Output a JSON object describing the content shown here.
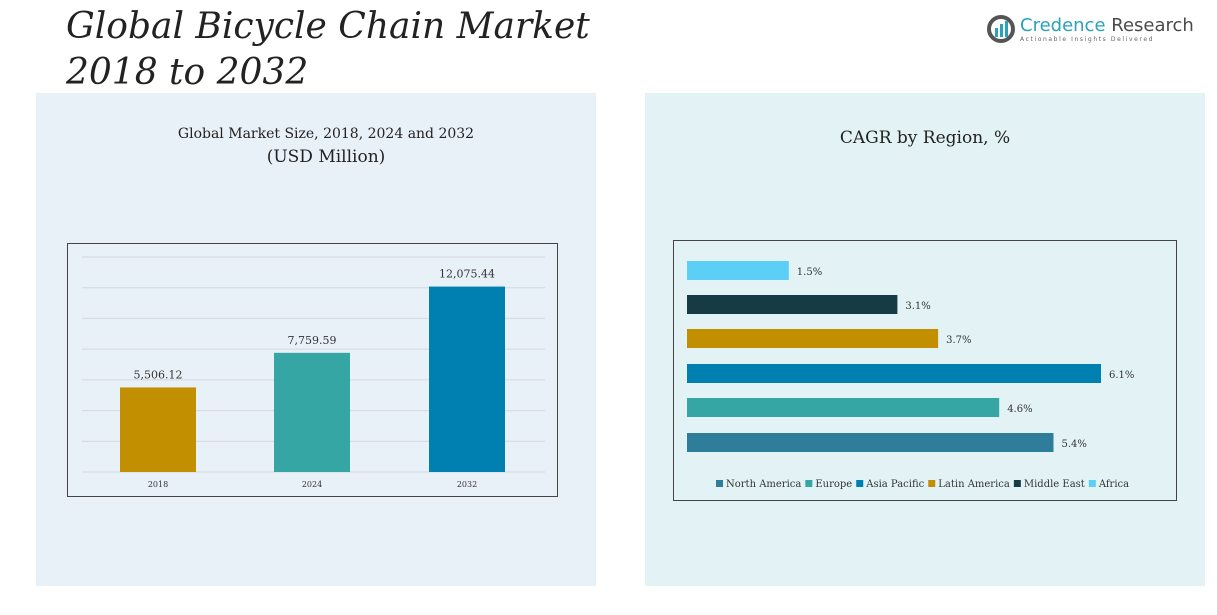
{
  "header": {
    "title_line1": "Global Bicycle Chain Market",
    "title_line2": "2018 to 2032"
  },
  "logo": {
    "name_part1": "Credence",
    "name_part2": " Research",
    "tagline": "Actionable Insights Delivered"
  },
  "chart_data": [
    {
      "type": "bar",
      "title": "Global Market Size, 2018, 2024 and 2032",
      "subtitle": "(USD Million)",
      "categories": [
        "2018",
        "2024",
        "2032"
      ],
      "values": [
        5506.12,
        7759.59,
        12075.44
      ],
      "labels": [
        "5,506.12",
        "7,759.59",
        "12,075.44"
      ],
      "colors": [
        "#c28f00",
        "#35a6a3",
        "#0080b0"
      ],
      "ylim": [
        0,
        14000
      ],
      "grid": true
    },
    {
      "type": "bar",
      "orientation": "horizontal",
      "title": "CAGR by Region, %",
      "categories": [
        "North America",
        "Europe",
        "Asia Pacific",
        "Latin America",
        "Middle East",
        "Africa"
      ],
      "values": [
        5.4,
        4.6,
        6.1,
        3.7,
        3.1,
        1.5
      ],
      "labels": [
        "5.4%",
        "4.6%",
        "6.1%",
        "3.7%",
        "3.1%",
        "1.5%"
      ],
      "colors": [
        "#2e7d9a",
        "#35a6a3",
        "#0080b0",
        "#c28f00",
        "#173a47",
        "#5bcff5"
      ],
      "xlim": [
        0,
        7
      ],
      "legend": "bottom",
      "grid": false
    }
  ]
}
